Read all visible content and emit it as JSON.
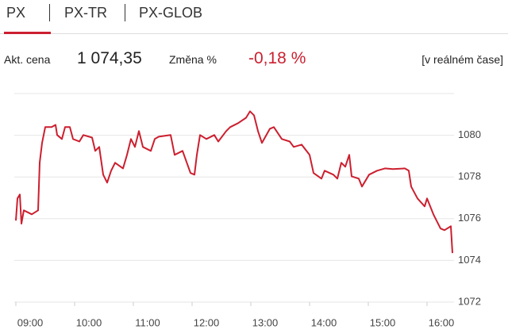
{
  "tabs": [
    "PX",
    "PX-TR",
    "PX-GLOB"
  ],
  "quote": {
    "price_label": "Akt. cena",
    "price": "1 074,35",
    "change_label": "Změna %",
    "change": "-0,18 %",
    "realtime": "[v reálném čase]"
  },
  "chart_data": {
    "type": "line",
    "color": "#cc1f2f",
    "grid": true,
    "x": [
      9.0,
      9.027,
      9.068,
      9.095,
      9.135,
      9.27,
      9.378,
      9.405,
      9.446,
      9.5,
      9.608,
      9.676,
      9.703,
      9.784,
      9.838,
      9.919,
      9.973,
      10.081,
      10.149,
      10.297,
      10.351,
      10.419,
      10.486,
      10.554,
      10.622,
      10.689,
      10.824,
      10.892,
      10.959,
      11.027,
      11.095,
      11.162,
      11.297,
      11.365,
      11.432,
      11.635,
      11.703,
      11.838,
      11.973,
      12.041,
      12.081,
      12.135,
      12.243,
      12.378,
      12.446,
      12.581,
      12.649,
      12.784,
      12.919,
      12.986,
      13.054,
      13.122,
      13.189,
      13.324,
      13.392,
      13.527,
      13.662,
      13.73,
      13.865,
      14.0,
      14.068,
      14.203,
      14.257,
      14.405,
      14.473,
      14.541,
      14.608,
      14.676,
      14.716,
      14.838,
      14.892,
      15.014,
      15.149,
      15.284,
      15.419,
      15.622,
      15.689,
      15.73,
      15.838,
      15.959,
      16.0,
      16.108,
      16.23,
      16.297,
      16.405,
      16.432
    ],
    "values": [
      1075.91,
      1076.97,
      1077.16,
      1075.76,
      1076.4,
      1076.21,
      1076.4,
      1078.68,
      1079.63,
      1080.39,
      1080.39,
      1080.5,
      1080.01,
      1079.82,
      1080.39,
      1080.39,
      1079.82,
      1079.7,
      1080.01,
      1079.89,
      1079.25,
      1079.44,
      1078.11,
      1077.73,
      1078.3,
      1078.68,
      1078.41,
      1079.06,
      1079.82,
      1079.44,
      1080.2,
      1079.44,
      1079.25,
      1079.82,
      1079.93,
      1080.01,
      1079.06,
      1079.25,
      1078.19,
      1078.11,
      1079.06,
      1080.01,
      1079.82,
      1080.01,
      1079.7,
      1080.2,
      1080.39,
      1080.58,
      1080.84,
      1081.15,
      1080.96,
      1080.2,
      1079.63,
      1080.31,
      1080.39,
      1079.82,
      1079.7,
      1079.44,
      1079.55,
      1079.06,
      1078.19,
      1077.92,
      1078.3,
      1078.11,
      1077.92,
      1078.68,
      1078.49,
      1079.06,
      1078.03,
      1077.92,
      1077.54,
      1078.11,
      1078.3,
      1078.41,
      1078.38,
      1078.41,
      1078.3,
      1077.54,
      1076.97,
      1076.59,
      1076.97,
      1076.21,
      1075.53,
      1075.45,
      1075.64,
      1074.35
    ],
    "xlim": [
      9,
      16.5
    ],
    "xticks": [
      {
        "value": 9,
        "label": "09:00"
      },
      {
        "value": 10,
        "label": "10:00"
      },
      {
        "value": 11,
        "label": "11:00"
      },
      {
        "value": 12,
        "label": "12:00"
      },
      {
        "value": 13,
        "label": "13:00"
      },
      {
        "value": 14,
        "label": "14:00"
      },
      {
        "value": 15,
        "label": "15:00"
      },
      {
        "value": 16,
        "label": "16:00"
      }
    ],
    "ylim": [
      1072,
      1082
    ],
    "yticks": [
      1072,
      1074,
      1076,
      1078,
      1080
    ]
  }
}
